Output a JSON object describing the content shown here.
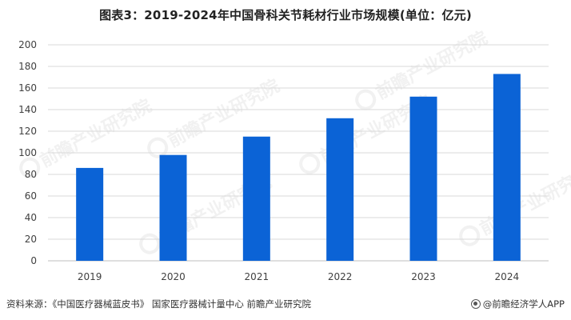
{
  "chart_data": {
    "type": "bar",
    "title": "图表3：2019-2024年中国骨科关节耗材行业市场规模(单位：亿元)",
    "categories": [
      "2019",
      "2020",
      "2021",
      "2022",
      "2023",
      "2024"
    ],
    "values": [
      86,
      98,
      115,
      132,
      152,
      173
    ],
    "ylim": [
      0,
      200
    ],
    "yticks": [
      0,
      20,
      40,
      60,
      80,
      100,
      120,
      140,
      160,
      180,
      200
    ],
    "xlabel": "",
    "ylabel": "",
    "grid": true,
    "legend": "none",
    "bar_color": "#0b63d6"
  },
  "footer": {
    "source": "资料来源：《中国医疗器械蓝皮书》 国家医疗器械计量中心 前瞻产业研究院",
    "brand": "@前瞻经济学人APP"
  },
  "watermark": {
    "text": "前瞻产业研究院",
    "icon": "qianzhan-logo-icon"
  }
}
